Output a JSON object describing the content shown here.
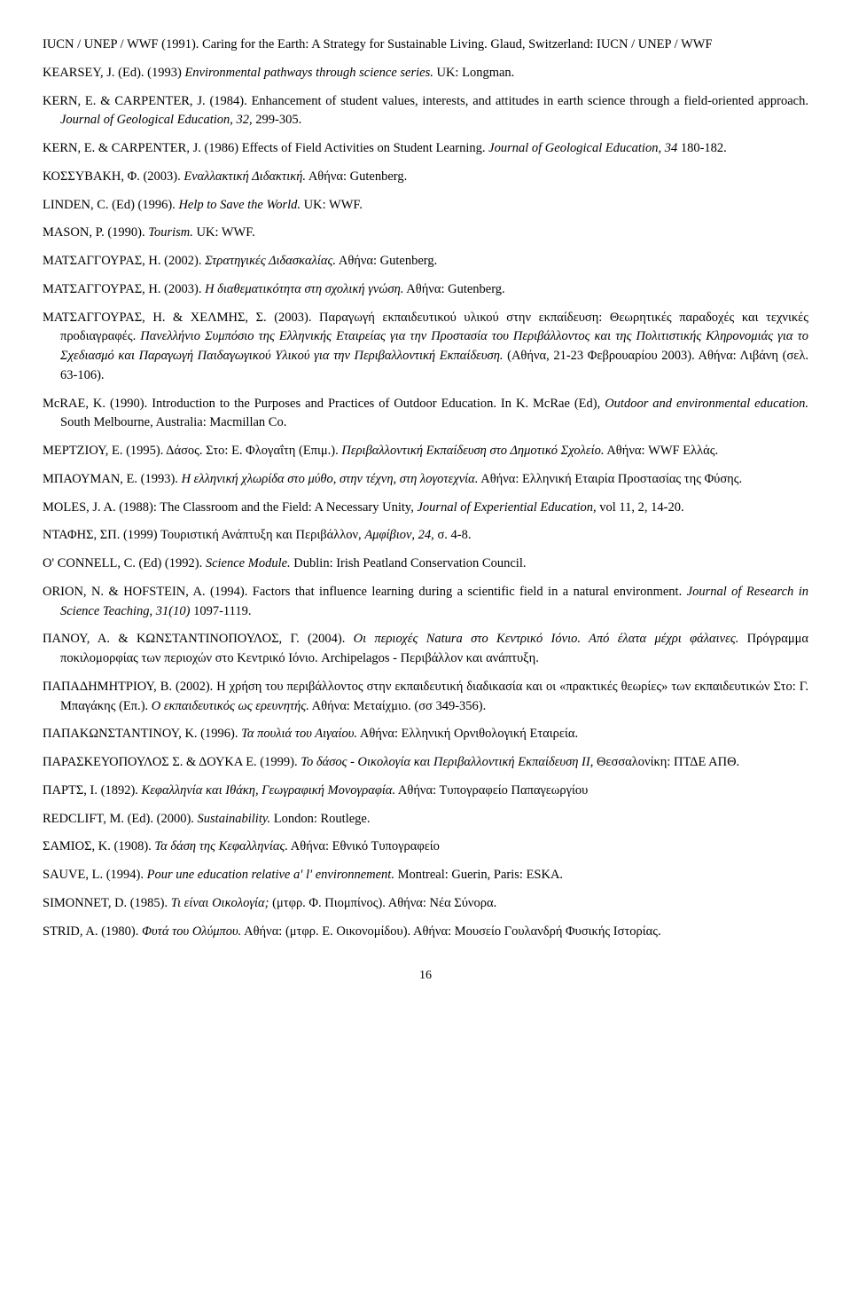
{
  "page_number": "16",
  "references": [
    {
      "html": "IUCN / UNEP / WWF (1991). Caring for the Earth: A Strategy for Sustainable Living. Glaud, Switzerland: IUCN / UNEP / WWF"
    },
    {
      "html": "KEARSEY, J. (Ed). (1993) <span class=\"italic\">Environmental pathways through science series.</span> UK: Longman."
    },
    {
      "html": "KERN, E. & CARPENTER, J. (1984). Enhancement of student values, interests, and attitudes in earth science through a field-oriented approach. <span class=\"italic\">Journal of Geological Education, 32,</span> 299-305."
    },
    {
      "html": "KERN, E. & CARPENTER, J. (1986) Effects of Field Activities on Student Learning. <span class=\"italic\">Journal of Geological Education, 34</span> 180-182."
    },
    {
      "html": "ΚΟΣΣΥΒΑΚΗ, Φ. (2003). <span class=\"italic\">Εναλλακτική Διδακτική.</span> Αθήνα: Gutenberg."
    },
    {
      "html": "LINDEN, C. (Ed) (1996). <span class=\"italic\">Help to Save the World.</span> UK: WWF."
    },
    {
      "html": "MASON, P. (1990). <span class=\"italic\">Tourism.</span> UK: WWF."
    },
    {
      "html": "ΜΑΤΣΑΓΓΟΥΡΑΣ, Η. (2002). <span class=\"italic\">Στρατηγικές Διδασκαλίας.</span> Αθήνα: Gutenberg."
    },
    {
      "html": "ΜΑΤΣΑΓΓΟΥΡΑΣ, Η. (2003). <span class=\"italic\">Η διαθεματικότητα στη σχολική γνώση.</span> Αθήνα: Gutenberg."
    },
    {
      "html": "ΜΑΤΣΑΓΓΟΥΡΑΣ, Η. & ΧΕΛΜΗΣ, Σ. (2003). Παραγωγή εκπαιδευτικού υλικού στην εκπαίδευση: Θεωρητικές παραδοχές και τεχνικές προδιαγραφές. <span class=\"italic\">Πανελλήνιο Συμπόσιο της Ελληνικής Εταιρείας για την Προστασία του Περιβάλλοντος και της Πολιτιστικής Κληρονομιάς για το Σχεδιασμό και Παραγωγή Παιδαγωγικού Υλικού για την Περιβαλλοντική Εκπαίδευση.</span> (Αθήνα, 21-23 Φεβρουαρίου 2003). Αθήνα: Λιβάνη (σελ. 63-106)."
    },
    {
      "html": "McRAE, K. (1990). Introduction to the Purposes and Practices of Outdoor Education. In K. McRae (Ed), <span class=\"italic\">Outdoor and environmental education.</span> South Melbourne, Australia: Macmillan Co."
    },
    {
      "html": "ΜΕΡΤΖΙΟΥ, Ε. (1995). Δάσος. Στο: Ε. Φλογαΐτη (Επιμ.). <span class=\"italic\">Περιβαλλοντική Εκπαίδευση στο Δημοτικό Σχολείο.</span> Αθήνα: WWF Ελλάς."
    },
    {
      "html": "ΜΠΑΟΥΜΑΝ, Ε. (1993). <span class=\"italic\">Η ελληνική χλωρίδα στο μύθο, στην τέχνη, στη λογοτεχνία.</span> Αθήνα: Ελληνική Εταιρία Προστασίας της Φύσης."
    },
    {
      "html": "MOLES, J. A. (1988): The Classroom and the Field: A Necessary Unity, <span class=\"italic\">Journal of Experiential Education,</span> vol 11, 2, 14-20."
    },
    {
      "html": "ΝΤΑΦΗΣ, ΣΠ. (1999) Τουριστική Ανάπτυξη και Περιβάλλον, <span class=\"italic\">Αμφίβιον, 24,</span> σ. 4-8."
    },
    {
      "html": "O' CONNELL, C. (Ed) (1992). <span class=\"italic\">Science Module.</span> Dublin: Irish Peatland Conservation Council."
    },
    {
      "html": "ORION, N. & HOFSTEIN, A. (1994). Factors that influence learning during a scientific field in a natural environment. <span class=\"italic\">Journal of Research in Science Teaching, 31(10)</span> 1097-1119."
    },
    {
      "html": "ΠΑΝΟΥ, Α. & ΚΩΝΣΤΑΝΤΙΝΟΠΟΥΛΟΣ, Γ. (2004). <span class=\"italic\">Οι περιοχές Natura στο Κεντρικό Ιόνιο. Από έλατα μέχρι φάλαινες.</span> Πρόγραμμα ποκιλομορφίας των περιοχών στο Κεντρικό Ιόνιο. Archipelagos - Περιβάλλον και ανάπτυξη."
    },
    {
      "html": "ΠΑΠΑΔΗΜΗΤΡΙΟΥ, Β. (2002). Η χρήση του περιβάλλοντος στην εκπαιδευτική διαδικασία και οι «πρακτικές θεωρίες» των εκπαιδευτικών Στο: Γ. Μπαγάκης (Επ.). <span class=\"italic\">Ο εκπαιδευτικός ως ερευνητής.</span> Αθήνα: Μεταίχμιο. (σσ 349-356)."
    },
    {
      "html": "ΠΑΠΑΚΩΝΣΤΑΝΤΙΝΟΥ, Κ. (1996). <span class=\"italic\">Τα πουλιά του Αιγαίου.</span> Αθήνα: Ελληνική Ορνιθολογική Εταιρεία."
    },
    {
      "html": "ΠΑΡΑΣΚΕΥΟΠΟΥΛΟΣ Σ. & ΔΟΥΚΑ Ε. (1999). <span class=\"italic\">Το δάσος - Οικολογία και Περιβαλλοντική Εκπαίδευση II,</span> Θεσσαλονίκη: ΠΤΔΕ ΑΠΘ."
    },
    {
      "html": "ΠΑΡΤΣ, Ι. (1892). <span class=\"italic\">Κεφαλληνία και Ιθάκη, Γεωγραφική Μονογραφία.</span> Αθήνα: Τυπογραφείο Παπαγεωργίου"
    },
    {
      "html": "REDCLIFT, M. (Ed). (2000). <span class=\"italic\">Sustainability.</span> London: Routlege."
    },
    {
      "html": "ΣΑΜΙΟΣ, Κ. (1908). <span class=\"italic\">Τα δάση της Κεφαλληνίας.</span> Αθήνα: Εθνικό Τυπογραφείο"
    },
    {
      "html": "SAUVE, L. (1994). <span class=\"italic\">Pour une education relative a' l' environnement.</span> Montreal: Guerin, Paris: ESKA."
    },
    {
      "html": "SIMONNET, D. (1985). <span class=\"italic\">Τι είναι Οικολογία;</span> (μτφρ. Φ. Πιομπίνος). Αθήνα: Νέα Σύνορα."
    },
    {
      "html": "STRID, A. (1980). <span class=\"italic\">Φυτά του Ολύμπου.</span> Αθήνα: (μτφρ. Ε. Οικονομίδου). Αθήνα: Μουσείο Γουλανδρή Φυσικής Ιστορίας."
    }
  ]
}
